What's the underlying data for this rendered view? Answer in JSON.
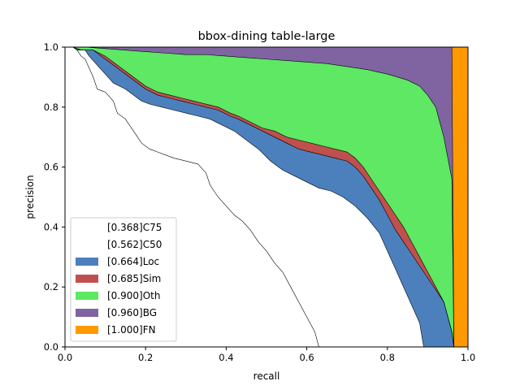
{
  "chart_data": {
    "type": "area",
    "title": "bbox-dining table-large",
    "xlabel": "recall",
    "ylabel": "precision",
    "xlim": [
      0,
      1
    ],
    "ylim": [
      0,
      1
    ],
    "xticks": [
      "0.0",
      "0.2",
      "0.4",
      "0.6",
      "0.8",
      "1.0"
    ],
    "yticks": [
      "0.0",
      "0.2",
      "0.4",
      "0.6",
      "0.8",
      "1.0"
    ],
    "grid": false,
    "legend_position": "lower-left",
    "series": [
      {
        "name": "[0.368]C75",
        "color": "#ffffff",
        "points": [
          [
            0.02,
            1.0
          ],
          [
            0.03,
            0.99
          ],
          [
            0.04,
            0.97
          ],
          [
            0.05,
            0.96
          ],
          [
            0.06,
            0.93
          ],
          [
            0.07,
            0.9
          ],
          [
            0.08,
            0.86
          ],
          [
            0.1,
            0.85
          ],
          [
            0.12,
            0.82
          ],
          [
            0.13,
            0.78
          ],
          [
            0.15,
            0.76
          ],
          [
            0.17,
            0.72
          ],
          [
            0.19,
            0.68
          ],
          [
            0.21,
            0.66
          ],
          [
            0.23,
            0.65
          ],
          [
            0.25,
            0.64
          ],
          [
            0.27,
            0.63
          ],
          [
            0.3,
            0.62
          ],
          [
            0.33,
            0.61
          ],
          [
            0.35,
            0.58
          ],
          [
            0.36,
            0.54
          ],
          [
            0.38,
            0.5
          ],
          [
            0.4,
            0.47
          ],
          [
            0.42,
            0.44
          ],
          [
            0.44,
            0.42
          ],
          [
            0.46,
            0.39
          ],
          [
            0.48,
            0.35
          ],
          [
            0.5,
            0.32
          ],
          [
            0.52,
            0.28
          ],
          [
            0.54,
            0.25
          ],
          [
            0.56,
            0.2
          ],
          [
            0.58,
            0.15
          ],
          [
            0.6,
            0.1
          ],
          [
            0.62,
            0.05
          ],
          [
            0.63,
            0.0
          ]
        ]
      },
      {
        "name": "[0.562]C50",
        "color": "#ffffff",
        "points": [
          [
            0.02,
            1.0
          ],
          [
            0.03,
            0.99
          ],
          [
            0.05,
            0.99
          ],
          [
            0.06,
            0.97
          ],
          [
            0.08,
            0.94
          ],
          [
            0.1,
            0.91
          ],
          [
            0.12,
            0.88
          ],
          [
            0.15,
            0.86
          ],
          [
            0.17,
            0.84
          ],
          [
            0.19,
            0.82
          ],
          [
            0.21,
            0.81
          ],
          [
            0.24,
            0.8
          ],
          [
            0.27,
            0.79
          ],
          [
            0.3,
            0.78
          ],
          [
            0.33,
            0.77
          ],
          [
            0.36,
            0.76
          ],
          [
            0.39,
            0.74
          ],
          [
            0.42,
            0.72
          ],
          [
            0.45,
            0.69
          ],
          [
            0.48,
            0.66
          ],
          [
            0.51,
            0.62
          ],
          [
            0.54,
            0.59
          ],
          [
            0.57,
            0.57
          ],
          [
            0.6,
            0.55
          ],
          [
            0.63,
            0.53
          ],
          [
            0.66,
            0.52
          ],
          [
            0.69,
            0.5
          ],
          [
            0.72,
            0.47
          ],
          [
            0.75,
            0.43
          ],
          [
            0.78,
            0.38
          ],
          [
            0.8,
            0.32
          ],
          [
            0.82,
            0.26
          ],
          [
            0.84,
            0.2
          ],
          [
            0.86,
            0.14
          ],
          [
            0.88,
            0.08
          ],
          [
            0.89,
            0.0
          ]
        ]
      },
      {
        "name": "[0.664]Loc",
        "color": "#4c80bd",
        "points": [
          [
            0.02,
            1.0
          ],
          [
            0.04,
            0.99
          ],
          [
            0.07,
            0.99
          ],
          [
            0.1,
            0.96
          ],
          [
            0.12,
            0.94
          ],
          [
            0.14,
            0.92
          ],
          [
            0.16,
            0.9
          ],
          [
            0.18,
            0.88
          ],
          [
            0.2,
            0.86
          ],
          [
            0.23,
            0.84
          ],
          [
            0.26,
            0.83
          ],
          [
            0.29,
            0.82
          ],
          [
            0.32,
            0.81
          ],
          [
            0.35,
            0.8
          ],
          [
            0.38,
            0.79
          ],
          [
            0.41,
            0.77
          ],
          [
            0.43,
            0.76
          ],
          [
            0.46,
            0.74
          ],
          [
            0.49,
            0.72
          ],
          [
            0.52,
            0.7
          ],
          [
            0.55,
            0.68
          ],
          [
            0.58,
            0.66
          ],
          [
            0.61,
            0.65
          ],
          [
            0.64,
            0.64
          ],
          [
            0.67,
            0.63
          ],
          [
            0.7,
            0.62
          ],
          [
            0.72,
            0.6
          ],
          [
            0.74,
            0.57
          ],
          [
            0.76,
            0.53
          ],
          [
            0.78,
            0.49
          ],
          [
            0.8,
            0.44
          ],
          [
            0.82,
            0.39
          ],
          [
            0.84,
            0.35
          ],
          [
            0.86,
            0.31
          ],
          [
            0.88,
            0.27
          ],
          [
            0.9,
            0.23
          ],
          [
            0.92,
            0.19
          ],
          [
            0.94,
            0.15
          ],
          [
            0.95,
            0.1
          ],
          [
            0.96,
            0.05
          ],
          [
            0.965,
            0.0
          ]
        ]
      },
      {
        "name": "[0.685]Sim",
        "color": "#c0504d",
        "points": [
          [
            0.02,
            1.0
          ],
          [
            0.04,
            0.99
          ],
          [
            0.07,
            0.99
          ],
          [
            0.1,
            0.97
          ],
          [
            0.12,
            0.95
          ],
          [
            0.14,
            0.93
          ],
          [
            0.16,
            0.91
          ],
          [
            0.18,
            0.89
          ],
          [
            0.2,
            0.87
          ],
          [
            0.23,
            0.85
          ],
          [
            0.26,
            0.84
          ],
          [
            0.29,
            0.83
          ],
          [
            0.32,
            0.82
          ],
          [
            0.35,
            0.81
          ],
          [
            0.38,
            0.8
          ],
          [
            0.41,
            0.78
          ],
          [
            0.43,
            0.77
          ],
          [
            0.46,
            0.75
          ],
          [
            0.49,
            0.73
          ],
          [
            0.52,
            0.72
          ],
          [
            0.55,
            0.7
          ],
          [
            0.58,
            0.69
          ],
          [
            0.61,
            0.68
          ],
          [
            0.64,
            0.67
          ],
          [
            0.67,
            0.66
          ],
          [
            0.7,
            0.65
          ],
          [
            0.72,
            0.63
          ],
          [
            0.74,
            0.6
          ],
          [
            0.76,
            0.56
          ],
          [
            0.78,
            0.52
          ],
          [
            0.8,
            0.48
          ],
          [
            0.82,
            0.44
          ],
          [
            0.84,
            0.4
          ],
          [
            0.86,
            0.35
          ],
          [
            0.88,
            0.3
          ],
          [
            0.9,
            0.25
          ],
          [
            0.92,
            0.2
          ],
          [
            0.94,
            0.15
          ],
          [
            0.95,
            0.1
          ],
          [
            0.96,
            0.05
          ],
          [
            0.965,
            0.0
          ]
        ]
      },
      {
        "name": "[0.900]Oth",
        "color": "#5ee863",
        "points": [
          [
            0.02,
            1.0
          ],
          [
            0.05,
            1.0
          ],
          [
            0.1,
            0.995
          ],
          [
            0.15,
            0.99
          ],
          [
            0.2,
            0.985
          ],
          [
            0.25,
            0.98
          ],
          [
            0.3,
            0.975
          ],
          [
            0.35,
            0.975
          ],
          [
            0.4,
            0.97
          ],
          [
            0.45,
            0.965
          ],
          [
            0.5,
            0.96
          ],
          [
            0.55,
            0.955
          ],
          [
            0.6,
            0.95
          ],
          [
            0.65,
            0.945
          ],
          [
            0.7,
            0.935
          ],
          [
            0.75,
            0.925
          ],
          [
            0.8,
            0.91
          ],
          [
            0.85,
            0.89
          ],
          [
            0.88,
            0.87
          ],
          [
            0.9,
            0.84
          ],
          [
            0.92,
            0.8
          ],
          [
            0.93,
            0.75
          ],
          [
            0.94,
            0.7
          ],
          [
            0.95,
            0.63
          ],
          [
            0.96,
            0.56
          ],
          [
            0.965,
            0.0
          ]
        ]
      },
      {
        "name": "[0.960]BG",
        "color": "#8064a2",
        "points": [
          [
            0.02,
            1.0
          ],
          [
            0.96,
            1.0
          ],
          [
            0.965,
            0.0
          ]
        ]
      },
      {
        "name": "[1.000]FN",
        "color": "#ff9900",
        "points": [
          [
            0.96,
            1.0
          ],
          [
            1.0,
            1.0
          ],
          [
            1.0,
            0.0
          ],
          [
            0.965,
            0.0
          ]
        ]
      }
    ]
  }
}
